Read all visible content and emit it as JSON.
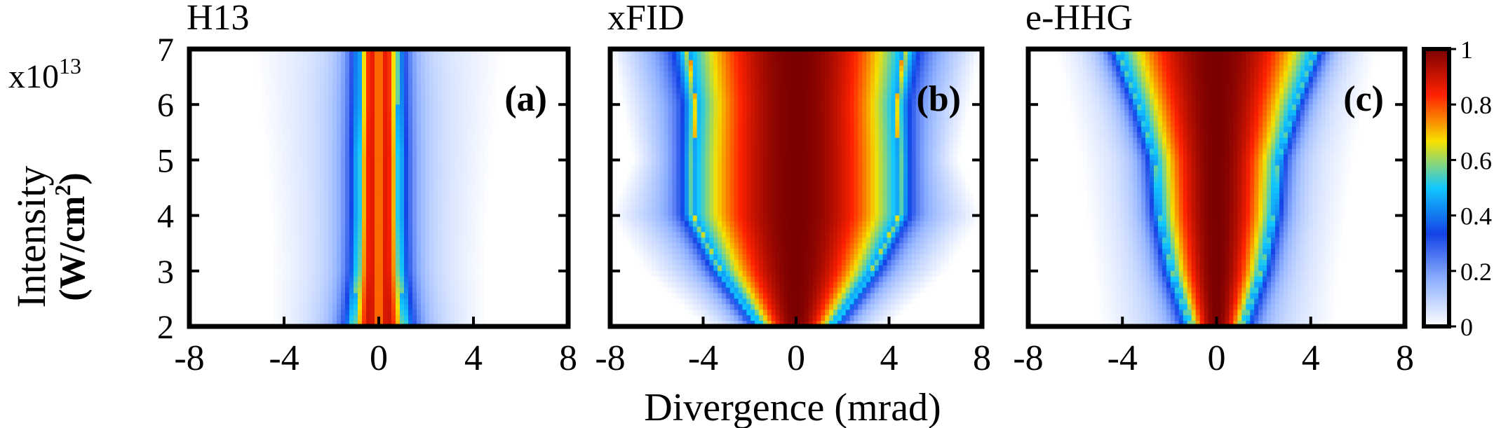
{
  "figure": {
    "ylabel_line1": "Intensity",
    "ylabel_line2_pre": "(W/cm",
    "ylabel_line2_sup": "2",
    "ylabel_line2_post": ")",
    "scale_base": "x10",
    "scale_exp": "13",
    "xlabel": "Divergence (mrad)"
  },
  "chart_data": [
    {
      "type": "heatmap",
      "title": "H13",
      "panel_label": "(a)",
      "x_ticks": [
        "-8",
        "-4",
        "0",
        "4",
        "8"
      ],
      "y_ticks": [
        "2",
        "3",
        "4",
        "5",
        "6",
        "7"
      ],
      "xlim": [
        -8,
        8
      ],
      "ylim": [
        2,
        7
      ],
      "profile": {
        "intensity": [
          2,
          3,
          4,
          5,
          6,
          7
        ],
        "core_halfwidth_mrad": [
          1.1,
          0.9,
          0.85,
          0.85,
          0.8,
          0.8
        ],
        "halo_halfwidth_mrad": [
          4.5,
          4.5,
          4.6,
          4.8,
          5.0,
          5.3
        ],
        "halo_level": [
          0.14,
          0.12,
          0.12,
          0.12,
          0.12,
          0.1
        ],
        "center_dip": 0.25
      }
    },
    {
      "type": "heatmap",
      "title": "xFID",
      "panel_label": "(b)",
      "x_ticks": [
        "-8",
        "-4",
        "0",
        "4",
        "8"
      ],
      "y_ticks": [
        "2",
        "3",
        "4",
        "5",
        "6",
        "7"
      ],
      "xlim": [
        -8,
        8
      ],
      "ylim": [
        2,
        7
      ],
      "profile": {
        "intensity": [
          2,
          3,
          4,
          5,
          6,
          7
        ],
        "core_halfwidth_mrad": [
          1.5,
          3.2,
          4.4,
          4.4,
          4.3,
          4.6
        ],
        "halo_halfwidth_mrad": [
          4.0,
          6.5,
          8.0,
          7.0,
          7.5,
          8.0
        ],
        "halo_level": [
          0.15,
          0.18,
          0.22,
          0.24,
          0.26,
          0.3
        ],
        "center_dip": 0.0
      }
    },
    {
      "type": "heatmap",
      "title": "e-HHG",
      "panel_label": "(c)",
      "x_ticks": [
        "-8",
        "-4",
        "0",
        "4",
        "8"
      ],
      "y_ticks": [
        "2",
        "3",
        "4",
        "5",
        "6",
        "7"
      ],
      "xlim": [
        -8,
        8
      ],
      "ylim": [
        2,
        7
      ],
      "profile": {
        "intensity": [
          2,
          3,
          4,
          5,
          6,
          7
        ],
        "core_halfwidth_mrad": [
          1.1,
          1.9,
          2.4,
          2.6,
          3.3,
          4.2
        ],
        "halo_halfwidth_mrad": [
          5.0,
          5.2,
          5.5,
          5.8,
          6.3,
          6.8
        ],
        "halo_level": [
          0.14,
          0.13,
          0.12,
          0.12,
          0.12,
          0.12
        ],
        "center_dip": 0.0
      }
    }
  ],
  "colorbar": {
    "ticks": [
      "0",
      "0.2",
      "0.4",
      "0.6",
      "0.8",
      "1"
    ],
    "range": [
      0,
      1
    ],
    "colors": [
      "#ffffff",
      "#8fb1ff",
      "#1442e6",
      "#11c8ff",
      "#f5e100",
      "#ff2200",
      "#7a0000"
    ]
  }
}
